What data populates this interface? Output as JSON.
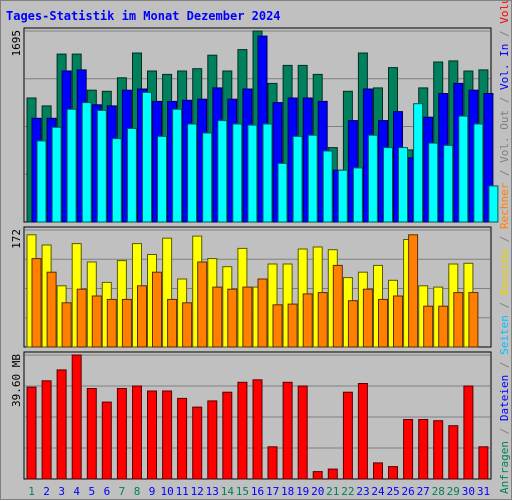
{
  "chart_data": {
    "type": "bar",
    "title": "Tages-Statistik im Monat Dezember 2024",
    "title_color": "#0000ff",
    "x": {
      "labels": [
        "1",
        "2",
        "3",
        "4",
        "5",
        "6",
        "7",
        "8",
        "9",
        "10",
        "11",
        "12",
        "13",
        "14",
        "15",
        "16",
        "17",
        "18",
        "19",
        "20",
        "21",
        "22",
        "23",
        "24",
        "25",
        "26",
        "27",
        "28",
        "29",
        "30",
        "31"
      ],
      "weekend_days": [
        "1",
        "7",
        "8",
        "14",
        "15",
        "21",
        "22",
        "28",
        "29"
      ],
      "weekday_color": "#0000ff",
      "weekend_color": "#00805c"
    },
    "panels": [
      {
        "name": "top",
        "y_tick_label": "1695",
        "y_max": 1695,
        "series": [
          {
            "name": "Anfragen",
            "color": "#00805c",
            "values": [
              1100,
              1030,
              1490,
              1490,
              1170,
              1160,
              1280,
              1500,
              1340,
              1310,
              1340,
              1360,
              1480,
              1340,
              1530,
              1695,
              1230,
              1390,
              1390,
              1310,
              660,
              1160,
              1500,
              1190,
              1370,
              640,
              1190,
              1420,
              1430,
              1340,
              1350
            ]
          },
          {
            "name": "Dateien",
            "color": "#0000ff",
            "values": [
              920,
              920,
              1340,
              1350,
              1040,
              1030,
              1170,
              1180,
              1070,
              1070,
              1080,
              1090,
              1190,
              1090,
              1180,
              1650,
              1060,
              1100,
              1100,
              1070,
              460,
              900,
              1180,
              900,
              980,
              570,
              930,
              1140,
              1230,
              1170,
              1140
            ]
          },
          {
            "name": "Seiten",
            "color": "#00ffff",
            "values": [
              720,
              840,
              1000,
              1060,
              990,
              740,
              830,
              1150,
              760,
              1000,
              870,
              790,
              900,
              870,
              860,
              870,
              520,
              760,
              770,
              630,
              460,
              480,
              770,
              660,
              660,
              1050,
              700,
              680,
              940,
              870,
              320
            ]
          }
        ]
      },
      {
        "name": "middle",
        "y_tick_label": "172",
        "y_max": 172,
        "series": [
          {
            "name": "Besuche",
            "color": "#ffff00",
            "values": [
              165,
              150,
              90,
              152,
              125,
              95,
              127,
              152,
              136,
              160,
              100,
              163,
              130,
              118,
              145,
              88,
              122,
              122,
              144,
              147,
              143,
              102,
              110,
              120,
              98,
              158,
              90,
              88,
              122,
              123,
              0
            ]
          },
          {
            "name": "Rechner",
            "color": "#ff8000",
            "values": [
              130,
              110,
              65,
              85,
              75,
              70,
              70,
              90,
              110,
              70,
              65,
              125,
              88,
              85,
              88,
              100,
              62,
              63,
              78,
              80,
              120,
              68,
              85,
              70,
              75,
              165,
              60,
              60,
              80,
              80,
              0
            ]
          }
        ]
      },
      {
        "name": "bottom",
        "y_tick_label": "39.60 MB",
        "y_max": 50,
        "series": [
          {
            "name": "Volumen",
            "color": "#ff0000",
            "values": [
              37,
              39.6,
              44,
              50,
              36.5,
              31,
              36.5,
              37.5,
              35.5,
              35.5,
              32.5,
              29,
              31.5,
              35,
              39,
              40,
              13,
              39,
              37.5,
              3,
              4,
              35,
              38.5,
              6.5,
              5,
              24,
              24,
              23.5,
              21.5,
              37.5,
              13
            ]
          }
        ]
      }
    ],
    "right_legend": {
      "line1": [
        {
          "text": "Anfragen",
          "color": "#00805c"
        },
        {
          "text": " / ",
          "color": "#808080"
        },
        {
          "text": "Dateien",
          "color": "#0000ff"
        },
        {
          "text": " / ",
          "color": "#808080"
        },
        {
          "text": "Seiten",
          "color": "#00c0ff"
        },
        {
          "text": " / ",
          "color": "#808080"
        },
        {
          "text": "Besuche",
          "color": "#e8d000"
        },
        {
          "text": " / ",
          "color": "#808080"
        },
        {
          "text": "Rechner",
          "color": "#ff8000"
        },
        {
          "text": " / ",
          "color": "#808080"
        },
        {
          "text": "Vol. Out",
          "color": "#808080"
        },
        {
          "text": " / ",
          "color": "#808080"
        },
        {
          "text": "Vol. In",
          "color": "#0000ff"
        },
        {
          "text": " / ",
          "color": "#808080"
        },
        {
          "text": "Volumen",
          "color": "#ff0000"
        }
      ]
    }
  }
}
